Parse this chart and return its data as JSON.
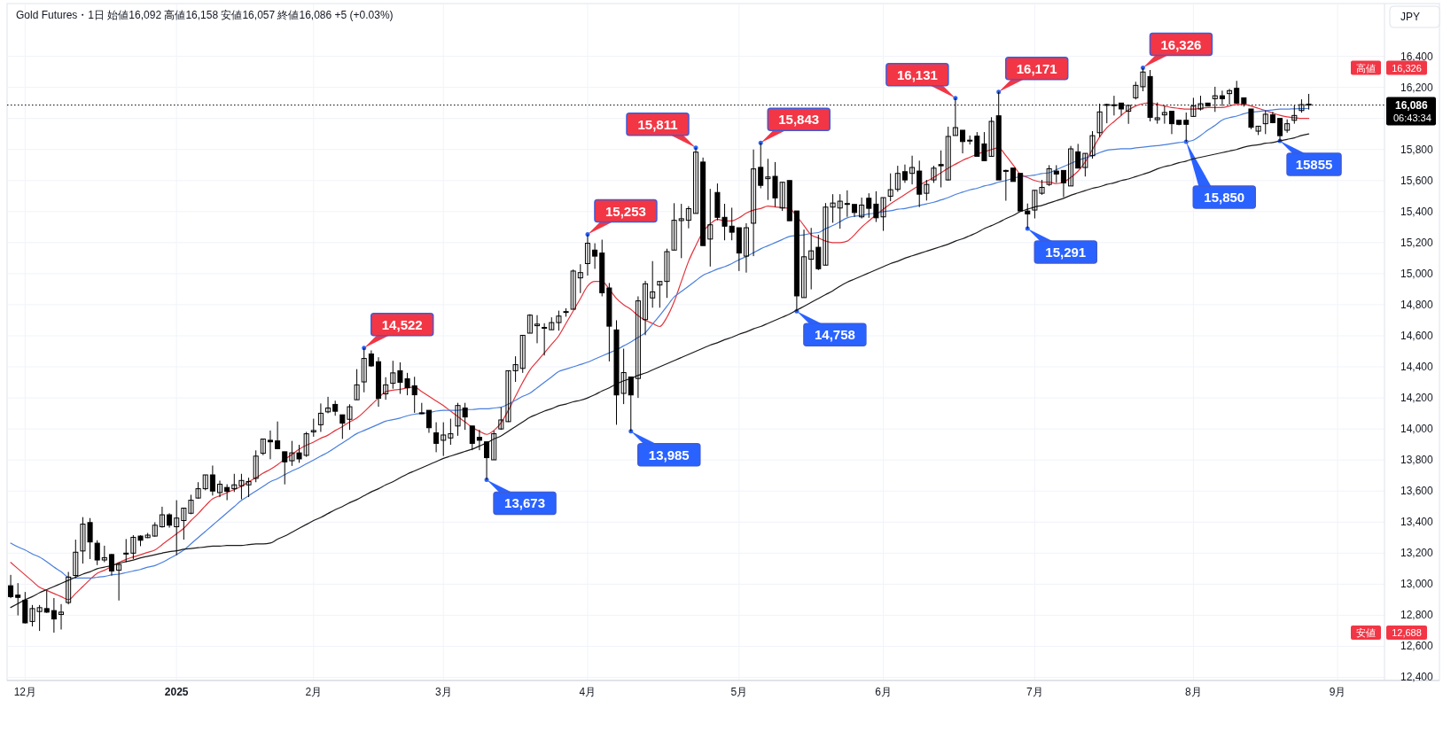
{
  "chart_data": {
    "type": "candlestick",
    "title": "Gold Futures・1日 始値16,092 高値16,158 安値16,057 終値16,086 +5 (+0.03%)",
    "ylabel": "JPY",
    "categories": [
      null,
      null,
      "12月",
      null,
      null,
      null,
      null,
      null,
      null,
      null,
      null,
      null,
      null,
      null,
      null,
      null,
      null,
      null,
      null,
      null,
      null,
      null,
      null,
      "2025",
      null,
      null,
      null,
      null,
      null,
      null,
      null,
      null,
      null,
      null,
      null,
      null,
      null,
      null,
      null,
      null,
      null,
      null,
      "2月",
      null,
      null,
      null,
      null,
      null,
      null,
      null,
      null,
      null,
      null,
      null,
      null,
      null,
      null,
      null,
      null,
      null,
      "3月",
      null,
      null,
      null,
      null,
      null,
      null,
      null,
      null,
      null,
      null,
      null,
      null,
      null,
      null,
      null,
      null,
      null,
      null,
      null,
      "4月",
      null,
      null,
      null,
      null,
      null,
      null,
      null,
      null,
      null,
      null,
      null,
      null,
      null,
      null,
      null,
      null,
      null,
      null,
      null,
      null,
      "5月",
      null,
      null,
      null,
      null,
      null,
      null,
      null,
      null,
      null,
      null,
      null,
      null,
      null,
      null,
      null,
      null,
      null,
      null,
      null,
      "6月",
      null,
      null,
      null,
      null,
      null,
      null,
      null,
      null,
      null,
      null,
      null,
      null,
      null,
      null,
      null,
      null,
      null,
      null,
      null,
      null,
      "7月",
      null,
      null,
      null,
      null,
      null,
      null,
      null,
      null,
      null,
      null,
      null,
      null,
      null,
      null,
      null,
      null,
      null,
      null,
      null,
      null,
      null,
      "8月",
      null,
      null,
      null,
      null,
      null,
      null,
      null,
      null,
      null,
      null,
      null,
      null,
      null,
      null,
      null,
      null,
      null,
      null,
      null,
      "9月",
      null,
      null,
      null,
      null,
      null,
      null
    ],
    "ohlc": [
      [
        12990,
        13060,
        12910,
        12920
      ],
      [
        12930,
        13007,
        12799,
        12915
      ],
      [
        12897,
        12950,
        12747,
        12751
      ],
      [
        12760,
        12866,
        12728,
        12843
      ],
      [
        12824,
        12866,
        12699,
        12849
      ],
      [
        12843,
        12959,
        12815,
        12820
      ],
      [
        12830,
        12911,
        12688,
        12776
      ],
      [
        12805,
        12872,
        12708,
        12820
      ],
      [
        12882,
        13079,
        12870,
        13046
      ],
      [
        13056,
        13287,
        13040,
        13206
      ],
      [
        13214,
        13432,
        13133,
        13387
      ],
      [
        13397,
        13426,
        13162,
        13272
      ],
      [
        13264,
        13283,
        13123,
        13156
      ],
      [
        13156,
        13248,
        13142,
        13171
      ],
      [
        13191,
        13195,
        13056,
        13085
      ],
      [
        13090,
        13133,
        12895,
        13127
      ],
      [
        13200,
        13291,
        13142,
        13195
      ],
      [
        13200,
        13316,
        13162,
        13302
      ],
      [
        13310,
        13315,
        13245,
        13283
      ],
      [
        13300,
        13330,
        13297,
        13316
      ],
      [
        13310,
        13399,
        13306,
        13380
      ],
      [
        13370,
        13499,
        13364,
        13447
      ],
      [
        13447,
        13457,
        13364,
        13380
      ],
      [
        13370,
        13541,
        13187,
        13426
      ],
      [
        13410,
        13490,
        13287,
        13490
      ],
      [
        13457,
        13576,
        13451,
        13541
      ],
      [
        13555,
        13657,
        13551,
        13615
      ],
      [
        13615,
        13704,
        13605,
        13704
      ],
      [
        13704,
        13764,
        13571,
        13600
      ],
      [
        13590,
        13667,
        13561,
        13644
      ],
      [
        13623,
        13644,
        13541,
        13598
      ],
      [
        13615,
        13711,
        13594,
        13640
      ],
      [
        13634,
        13711,
        13547,
        13668
      ],
      [
        13640,
        13686,
        13561,
        13661
      ],
      [
        13682,
        13862,
        13657,
        13825
      ],
      [
        13843,
        13935,
        13831,
        13935
      ],
      [
        13927,
        13990,
        13805,
        13917
      ],
      [
        13923,
        14048,
        13873,
        13873
      ],
      [
        13853,
        13853,
        13643,
        13788
      ],
      [
        13795,
        13923,
        13762,
        13846
      ],
      [
        13846,
        13898,
        13782,
        13807
      ],
      [
        13830,
        13981,
        13820,
        13969
      ],
      [
        13981,
        14066,
        13950,
        13990
      ],
      [
        14027,
        14164,
        13981,
        14101
      ],
      [
        14110,
        14207,
        14101,
        14135
      ],
      [
        14158,
        14182,
        14085,
        14114
      ],
      [
        14091,
        14091,
        13936,
        14037
      ],
      [
        14062,
        14159,
        13994,
        14143
      ],
      [
        14188,
        14385,
        14188,
        14284
      ],
      [
        14303,
        14522,
        14236,
        14454
      ],
      [
        14483,
        14506,
        14400,
        14406
      ],
      [
        14433,
        14462,
        14143,
        14197
      ],
      [
        14226,
        14333,
        14188,
        14284
      ],
      [
        14294,
        14439,
        14259,
        14361
      ],
      [
        14375,
        14429,
        14226,
        14300
      ],
      [
        14323,
        14361,
        14217,
        14265
      ],
      [
        14278,
        14336,
        14104,
        14220
      ],
      [
        14104,
        14168,
        14095,
        14098
      ],
      [
        14120,
        14120,
        13975,
        14008
      ],
      [
        13975,
        14043,
        13850,
        13907
      ],
      [
        13927,
        14043,
        13826,
        13961
      ],
      [
        13942,
        14066,
        13898,
        13969
      ],
      [
        14019,
        14168,
        13956,
        14151
      ],
      [
        14135,
        14168,
        13994,
        14077
      ],
      [
        14019,
        14019,
        13863,
        13907
      ],
      [
        13946,
        13994,
        13863,
        13927
      ],
      [
        13917,
        13917,
        13673,
        13815
      ],
      [
        13801,
        13989,
        13801,
        13969
      ],
      [
        14000,
        14139,
        13994,
        14058
      ],
      [
        14047,
        14375,
        14045,
        14375
      ],
      [
        14375,
        14468,
        14303,
        14414
      ],
      [
        14390,
        14603,
        14361,
        14603
      ],
      [
        14617,
        14739,
        14617,
        14733
      ],
      [
        14665,
        14733,
        14552,
        14675
      ],
      [
        14650,
        14681,
        14473,
        14654
      ],
      [
        14639,
        14719,
        14639,
        14685
      ],
      [
        14685,
        14762,
        14633,
        14727
      ],
      [
        14752,
        14777,
        14723,
        14756
      ],
      [
        14771,
        15027,
        14771,
        15017
      ],
      [
        14973,
        15061,
        14875,
        15007
      ],
      [
        15065,
        15253,
        14988,
        15196
      ],
      [
        15152,
        15196,
        15031,
        15113
      ],
      [
        15133,
        15219,
        14854,
        14877
      ],
      [
        14908,
        14940,
        14435,
        14662
      ],
      [
        14638,
        14700,
        14027,
        14219
      ],
      [
        14229,
        14517,
        14160,
        14363
      ],
      [
        14335,
        14335,
        13985,
        14219
      ],
      [
        14325,
        14854,
        14200,
        14825
      ],
      [
        14704,
        14954,
        14604,
        14935
      ],
      [
        14844,
        15081,
        14781,
        14883
      ],
      [
        14927,
        14950,
        14781,
        14950
      ],
      [
        14950,
        15161,
        14844,
        15142
      ],
      [
        15152,
        15454,
        15152,
        15344
      ],
      [
        15342,
        15450,
        15100,
        15354
      ],
      [
        15344,
        15435,
        15292,
        15419
      ],
      [
        15388,
        15811,
        15388,
        15783
      ],
      [
        15719,
        15748,
        15181,
        15181
      ],
      [
        15223,
        15546,
        15046,
        15315
      ],
      [
        15523,
        15581,
        15344,
        15363
      ],
      [
        15363,
        15450,
        15215,
        15306
      ],
      [
        15306,
        15425,
        15215,
        15267
      ],
      [
        15296,
        15296,
        15017,
        15133
      ],
      [
        15113,
        15325,
        15007,
        15296
      ],
      [
        15325,
        15800,
        15113,
        15675
      ],
      [
        15685,
        15843,
        15550,
        15569
      ],
      [
        15612,
        15740,
        15475,
        15623
      ],
      [
        15627,
        15719,
        15431,
        15488
      ],
      [
        15423,
        15589,
        15404,
        15589
      ],
      [
        15600,
        15600,
        15341,
        15341
      ],
      [
        15404,
        15404,
        14758,
        14857
      ],
      [
        14846,
        15284,
        14846,
        15109
      ],
      [
        15093,
        15295,
        14899,
        15147
      ],
      [
        15170,
        15251,
        15023,
        15032
      ],
      [
        15055,
        15455,
        15055,
        15429
      ],
      [
        15429,
        15512,
        15328,
        15455
      ],
      [
        15423,
        15512,
        15290,
        15467
      ],
      [
        15450,
        15537,
        15366,
        15452
      ],
      [
        15446,
        15446,
        15366,
        15394
      ],
      [
        15366,
        15490,
        15356,
        15442
      ],
      [
        15486,
        15518,
        15360,
        15421
      ],
      [
        15448,
        15531,
        15333,
        15360
      ],
      [
        15366,
        15490,
        15276,
        15490
      ],
      [
        15499,
        15646,
        15467,
        15541
      ],
      [
        15543,
        15695,
        15528,
        15646
      ],
      [
        15657,
        15703,
        15585,
        15604
      ],
      [
        15646,
        15760,
        15575,
        15684
      ],
      [
        15661,
        15728,
        15429,
        15512
      ],
      [
        15518,
        15604,
        15471,
        15575
      ],
      [
        15604,
        15695,
        15585,
        15680
      ],
      [
        15703,
        15794,
        15556,
        15695
      ],
      [
        15604,
        15947,
        15600,
        15884
      ],
      [
        15890,
        16131,
        15890,
        15941
      ],
      [
        15924,
        15924,
        15775,
        15851
      ],
      [
        15860,
        15890,
        15832,
        15857
      ],
      [
        15886,
        15912,
        15756,
        15756
      ],
      [
        15836,
        15912,
        15728,
        15728
      ],
      [
        15756,
        16008,
        15756,
        15981
      ],
      [
        16017,
        16171,
        15604,
        15604
      ],
      [
        15665,
        15670,
        15470,
        15660
      ],
      [
        15680,
        15680,
        15594,
        15594
      ],
      [
        15646,
        15646,
        15404,
        15404
      ],
      [
        15404,
        15452,
        15291,
        15385
      ],
      [
        15410,
        15537,
        15356,
        15537
      ],
      [
        15518,
        15604,
        15508,
        15556
      ],
      [
        15575,
        15699,
        15565,
        15676
      ],
      [
        15661,
        15699,
        15585,
        15642
      ],
      [
        15665,
        15665,
        15493,
        15585
      ],
      [
        15565,
        15823,
        15565,
        15804
      ],
      [
        15785,
        15836,
        15680,
        15680
      ],
      [
        15684,
        15775,
        15626,
        15775
      ],
      [
        15760,
        15918,
        15741,
        15889
      ],
      [
        15908,
        16095,
        15880,
        16042
      ],
      [
        16085,
        16095,
        15969,
        16090
      ],
      [
        16087,
        16146,
        16019,
        16088
      ],
      [
        16099,
        16099,
        16019,
        16061
      ],
      [
        16046,
        16084,
        15965,
        16084
      ],
      [
        16133,
        16236,
        16122,
        16213
      ],
      [
        16204,
        16326,
        16175,
        16299
      ],
      [
        16270,
        16312,
        15981,
        16007
      ],
      [
        15992,
        16103,
        15966,
        16004
      ],
      [
        16023,
        16080,
        15966,
        16038
      ],
      [
        16046,
        16046,
        15899,
        15966
      ],
      [
        15988,
        15988,
        15956,
        15962
      ],
      [
        15988,
        16038,
        15850,
        15962
      ],
      [
        16013,
        16133,
        16013,
        16080
      ],
      [
        16061,
        16146,
        16051,
        16095
      ],
      [
        16099,
        16099,
        16080,
        16080
      ],
      [
        16127,
        16204,
        16042,
        16146
      ],
      [
        16146,
        16179,
        16080,
        16127
      ],
      [
        16160,
        16190,
        16089,
        16179
      ],
      [
        16194,
        16242,
        16095,
        16099
      ],
      [
        16133,
        16133,
        16076,
        16095
      ],
      [
        16061,
        16061,
        15931,
        15943
      ],
      [
        15918,
        15950,
        15893,
        15950
      ],
      [
        15966,
        16051,
        15899,
        16027
      ],
      [
        16023,
        16042,
        15969,
        15973
      ],
      [
        16000,
        16000,
        15855,
        15889
      ],
      [
        15924,
        15994,
        15908,
        15966
      ],
      [
        15988,
        16084,
        15966,
        16019
      ],
      [
        16051,
        16123,
        16037,
        16089
      ],
      [
        16092,
        16158,
        16057,
        16086
      ],
      null,
      null,
      null,
      null,
      null,
      null,
      null,
      null,
      null,
      null
    ],
    "series": [
      {
        "type": "line",
        "color": "#e2343c",
        "values": [
          13140,
          13100,
          13060,
          13020,
          12980,
          12960,
          12940,
          12920,
          12900,
          12940,
          12985,
          13030,
          13070,
          13090,
          13115,
          13140,
          13160,
          13175,
          13190,
          13205,
          13220,
          13255,
          13290,
          13325,
          13360,
          13410,
          13455,
          13505,
          13550,
          13570,
          13590,
          13610,
          13630,
          13660,
          13685,
          13715,
          13740,
          13770,
          13805,
          13835,
          13870,
          13895,
          13915,
          13940,
          13960,
          13990,
          14015,
          14045,
          14070,
          14110,
          14155,
          14200,
          14240,
          14250,
          14255,
          14265,
          14270,
          14240,
          14210,
          14180,
          14150,
          14115,
          14080,
          14045,
          14010,
          13985,
          13965,
          13990,
          14040,
          14120,
          14210,
          14300,
          14380,
          14435,
          14490,
          14545,
          14600,
          14680,
          14760,
          14840,
          14920,
          14950,
          14950,
          14900,
          14840,
          14800,
          14770,
          14730,
          14700,
          14680,
          14660,
          14720,
          14820,
          14950,
          15080,
          15180,
          15270,
          15320,
          15350,
          15340,
          15340,
          15360,
          15390,
          15410,
          15420,
          15435,
          15430,
          15425,
          15420,
          15370,
          15310,
          15250,
          15230,
          15210,
          15200,
          15200,
          15210,
          15250,
          15300,
          15340,
          15380,
          15415,
          15450,
          15480,
          15510,
          15540,
          15570,
          15595,
          15620,
          15650,
          15680,
          15705,
          15730,
          15750,
          15770,
          15785,
          15800,
          15810,
          15760,
          15700,
          15640,
          15620,
          15600,
          15590,
          15590,
          15580,
          15590,
          15620,
          15660,
          15720,
          15800,
          15880,
          15940,
          15980,
          16020,
          16055,
          16080,
          16095,
          16100,
          16090,
          16080,
          16070,
          16065,
          16060,
          16060,
          16065,
          16070,
          16070,
          16070,
          16080,
          16090,
          16090,
          16080,
          16065,
          16050,
          16035,
          16020,
          16010,
          16005,
          16000,
          16000,
          null,
          null,
          null,
          null,
          null,
          null,
          null,
          null,
          null,
          null
        ]
      },
      {
        "type": "line",
        "color": "#4a7fdc",
        "values": [
          13265,
          13240,
          13220,
          13195,
          13175,
          13145,
          13110,
          13080,
          13045,
          13040,
          13040,
          13040,
          13045,
          13050,
          13060,
          13065,
          13075,
          13085,
          13095,
          13110,
          13120,
          13140,
          13165,
          13190,
          13220,
          13260,
          13300,
          13340,
          13380,
          13420,
          13460,
          13500,
          13540,
          13570,
          13600,
          13630,
          13660,
          13680,
          13705,
          13730,
          13750,
          13775,
          13800,
          13825,
          13850,
          13880,
          13910,
          13940,
          13970,
          13990,
          14010,
          14030,
          14050,
          14060,
          14070,
          14085,
          14095,
          14100,
          14105,
          14115,
          14120,
          14120,
          14120,
          14125,
          14125,
          14130,
          14130,
          14135,
          14140,
          14160,
          14185,
          14210,
          14230,
          14265,
          14300,
          14335,
          14370,
          14385,
          14400,
          14415,
          14430,
          14450,
          14470,
          14490,
          14510,
          14535,
          14560,
          14590,
          14620,
          14675,
          14730,
          14790,
          14850,
          14885,
          14920,
          14955,
          14990,
          15010,
          15030,
          15045,
          15065,
          15090,
          15110,
          15135,
          15160,
          15180,
          15200,
          15220,
          15240,
          15245,
          15250,
          15260,
          15265,
          15290,
          15310,
          15335,
          15360,
          15370,
          15375,
          15385,
          15390,
          15400,
          15405,
          15415,
          15420,
          15430,
          15440,
          15450,
          15460,
          15475,
          15490,
          15510,
          15525,
          15540,
          15550,
          15565,
          15575,
          15590,
          15600,
          15615,
          15625,
          15630,
          15635,
          15645,
          15650,
          15670,
          15690,
          15710,
          15730,
          15745,
          15760,
          15780,
          15795,
          15800,
          15805,
          15805,
          15810,
          15815,
          15820,
          15825,
          15830,
          15838,
          15845,
          15850,
          15860,
          15890,
          15925,
          15955,
          15990,
          16005,
          16015,
          16030,
          16040,
          16045,
          16050,
          16055,
          16060,
          16060,
          16062,
          16063,
          16064,
          null,
          null,
          null,
          null,
          null,
          null,
          null,
          null,
          null,
          null
        ]
      },
      {
        "type": "line",
        "color": "#1a1a1a",
        "values": [
          12850,
          12875,
          12900,
          12920,
          12945,
          12965,
          12985,
          13005,
          13025,
          13045,
          13065,
          13080,
          13100,
          13110,
          13120,
          13135,
          13145,
          13155,
          13170,
          13180,
          13190,
          13200,
          13210,
          13215,
          13225,
          13230,
          13235,
          13240,
          13245,
          13245,
          13250,
          13250,
          13250,
          13255,
          13260,
          13260,
          13265,
          13290,
          13310,
          13335,
          13360,
          13385,
          13410,
          13430,
          13455,
          13480,
          13500,
          13525,
          13545,
          13570,
          13595,
          13615,
          13640,
          13660,
          13685,
          13710,
          13730,
          13750,
          13770,
          13790,
          13810,
          13825,
          13840,
          13855,
          13870,
          13890,
          13910,
          13935,
          13955,
          13985,
          14015,
          14045,
          14075,
          14095,
          14115,
          14130,
          14150,
          14160,
          14175,
          14185,
          14200,
          14220,
          14245,
          14265,
          14290,
          14310,
          14325,
          14345,
          14360,
          14380,
          14400,
          14420,
          14440,
          14460,
          14480,
          14500,
          14520,
          14540,
          14555,
          14575,
          14590,
          14610,
          14625,
          14645,
          14660,
          14680,
          14700,
          14720,
          14740,
          14765,
          14790,
          14815,
          14840,
          14865,
          14890,
          14920,
          14945,
          14965,
          14985,
          15005,
          15025,
          15045,
          15065,
          15080,
          15100,
          15115,
          15130,
          15145,
          15160,
          15175,
          15190,
          15210,
          15225,
          15245,
          15265,
          15290,
          15310,
          15330,
          15355,
          15375,
          15400,
          15415,
          15430,
          15440,
          15455,
          15470,
          15485,
          15505,
          15520,
          15535,
          15550,
          15560,
          15575,
          15585,
          15600,
          15610,
          15625,
          15640,
          15655,
          15675,
          15690,
          15700,
          15715,
          15725,
          15740,
          15750,
          15760,
          15770,
          15780,
          15790,
          15800,
          15815,
          15825,
          15830,
          15840,
          15845,
          15855,
          15865,
          15875,
          15890,
          15900,
          null,
          null,
          null,
          null,
          null,
          null,
          null,
          null,
          null,
          null
        ]
      }
    ],
    "ylim": [
      12380,
      16740
    ],
    "yticks": [
      {
        "value": 12400,
        "label": "12,400"
      },
      {
        "value": 12600,
        "label": "12,600"
      },
      {
        "value": 12800,
        "label": "12,800"
      },
      {
        "value": 13000,
        "label": "13,000"
      },
      {
        "value": 13200,
        "label": "13,200"
      },
      {
        "value": 13400,
        "label": "13,400"
      },
      {
        "value": 13600,
        "label": "13,600"
      },
      {
        "value": 13800,
        "label": "13,800"
      },
      {
        "value": 14000,
        "label": "14,000"
      },
      {
        "value": 14200,
        "label": "14,200"
      },
      {
        "value": 14400,
        "label": "14,400"
      },
      {
        "value": 14600,
        "label": "14,600"
      },
      {
        "value": 14800,
        "label": "14,800"
      },
      {
        "value": 15000,
        "label": "15,000"
      },
      {
        "value": 15200,
        "label": "15,200"
      },
      {
        "value": 15400,
        "label": "15,400"
      },
      {
        "value": 15600,
        "label": "15,600"
      },
      {
        "value": 15800,
        "label": "15,800"
      },
      {
        "value": 16000,
        "label": null
      },
      {
        "value": 16200,
        "label": "16,200"
      },
      {
        "value": 16400,
        "label": "16,400"
      }
    ],
    "grid": true,
    "ref_lines": [
      {
        "axis": "y",
        "value": 16086,
        "label": "16,086",
        "line_style": "dotted",
        "color": "#000000"
      }
    ],
    "annotations": [
      "14,522",
      "13,673",
      "15,253",
      "13,985",
      "15,811",
      "15,843",
      "14,758",
      "16,131",
      "16,171",
      "15,291",
      "16,326",
      "15,850",
      "15855",
      "高値",
      "16,326",
      "安値",
      "12,688",
      "06:43:34"
    ]
  }
}
